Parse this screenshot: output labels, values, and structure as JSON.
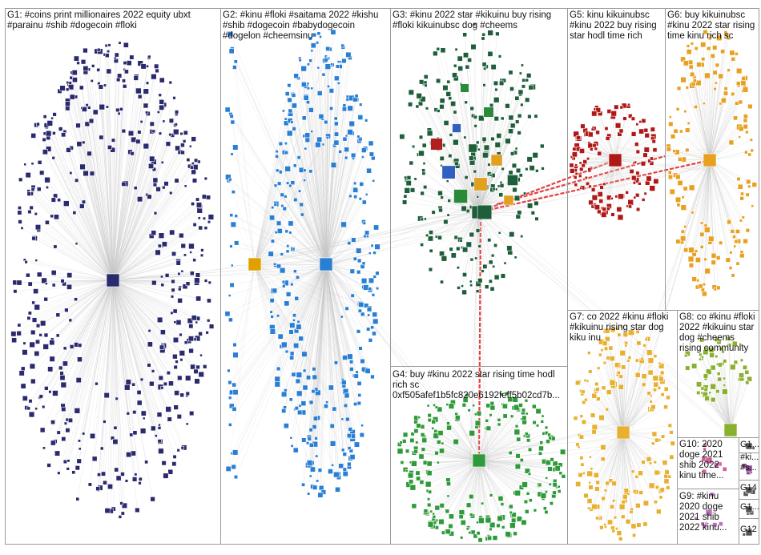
{
  "groups": [
    {
      "id": "G1",
      "label": "G1: #coins print millionaires 2022 equity ubxt #parainu #shib #dogecoin #floki",
      "color": "#2a2a6e",
      "count": 520
    },
    {
      "id": "G2",
      "label": "G2: #kinu #floki #saitama 2022 #kishu #shib #dogecoin #babydogecoin #dogelon #cheemsinu",
      "color": "#2a7fd4",
      "count": 420
    },
    {
      "id": "G3",
      "label": "G3: #kinu 2022 star #kikuinu buy rising #floki kikuinubsc dog #cheems",
      "color": "#1e5e3a",
      "count": 260
    },
    {
      "id": "G4",
      "label": "G4: buy #kinu 2022 star rising time hodl rich sc 0xf505afef1b5fc820e6192feff5b02cd7b...",
      "color": "#2e9a3a",
      "count": 260
    },
    {
      "id": "G5",
      "label": "G5: kinu kikuinubsc #kinu 2022 buy rising star hodl time rich",
      "color": "#b01818",
      "count": 140
    },
    {
      "id": "G6",
      "label": "G6: buy kikuinubsc #kinu 2022 star rising time kinu rich sc",
      "color": "#e8a020",
      "count": 170
    },
    {
      "id": "G7",
      "label": "G7: co 2022 #kinu #floki #kikuinu rising star dog kiku inu",
      "color": "#e8b030",
      "count": 200
    },
    {
      "id": "G8",
      "label": "G8: co #kinu #floki 2022 #kikuinu star dog #cheems rising community",
      "color": "#8ab030",
      "count": 60
    },
    {
      "id": "G9",
      "label": "G9: #kinu 2020 doge 2021 shib 2022 kinu...",
      "color": "#c070c0",
      "count": 8
    },
    {
      "id": "G10",
      "label": "G10: 2020 doge 2021 shib 2022 kinu time...",
      "color": "#d060a0",
      "count": 8
    },
    {
      "id": "G11",
      "label": "G1...",
      "color": "#555555",
      "count": 3
    },
    {
      "id": "G12",
      "label": "G12",
      "color": "#555555",
      "count": 2
    },
    {
      "id": "G13",
      "label": "#ki... #s...",
      "color": "#884488",
      "count": 3
    },
    {
      "id": "G14",
      "label": "G14",
      "color": "#555555",
      "count": 2
    },
    {
      "id": "G15",
      "label": "G1...",
      "color": "#555555",
      "count": 2
    }
  ],
  "edge_color": "#c8c8c8",
  "highlight_edge_color": "#e02020"
}
